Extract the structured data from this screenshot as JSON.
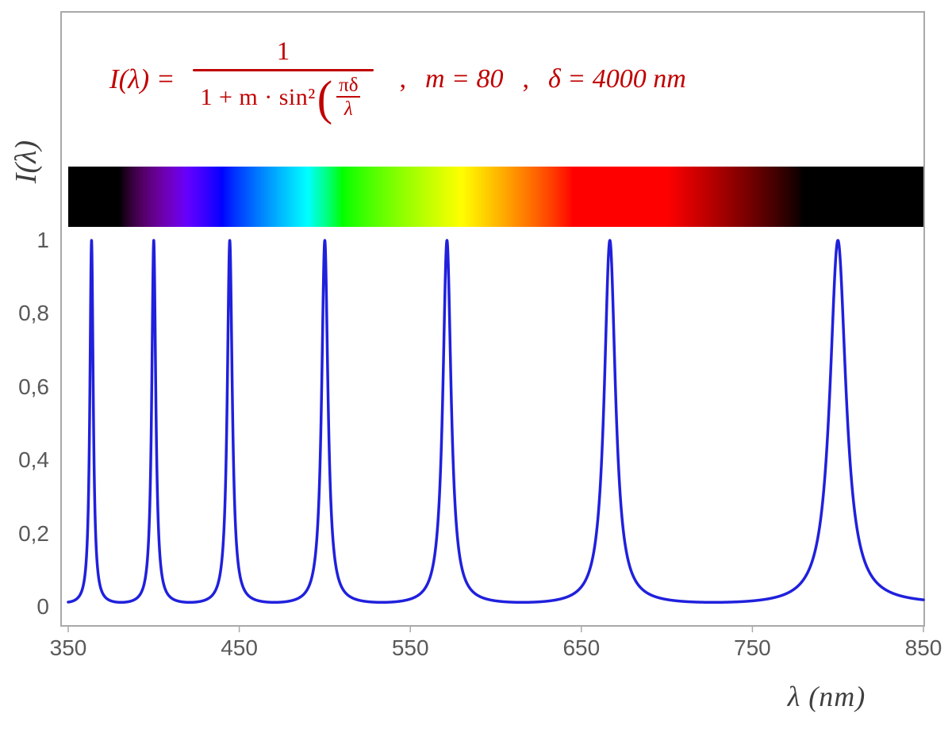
{
  "figure": {
    "background": "#ffffff",
    "frame_color": "#a9a9a9",
    "tick_text_color": "#595959",
    "axis_title_color": "#3f3f3f"
  },
  "formula": {
    "color": "#c00000",
    "lhs": "I(λ) =",
    "numerator": "1",
    "denominator_text": "1 + m · sin²",
    "paren_open": "(",
    "inner_numerator": "πδ",
    "inner_denominator": "λ",
    "comma1": ",",
    "param_m": "m = 80",
    "comma2": ",",
    "param_delta": "δ = 4000 nm"
  },
  "chart_data": {
    "type": "line",
    "title": "I(λ) = 1 / (1 + m·sin²(πδ/λ)) ,  m = 80 ,  δ = 4000 nm",
    "params": {
      "m": 80,
      "delta_nm": 4000
    },
    "x": {
      "min": 350,
      "max": 850,
      "ticks": [
        350,
        450,
        550,
        650,
        750,
        850
      ],
      "tick_labels": [
        "350",
        "450",
        "550",
        "650",
        "750",
        "850"
      ],
      "label": "λ  (nm)"
    },
    "y": {
      "min": 0,
      "max": 1,
      "ticks": [
        0,
        0.2,
        0.4,
        0.6,
        0.8,
        1
      ],
      "tick_labels": [
        "0",
        "0,2",
        "0,4",
        "0,6",
        "0,8",
        "1"
      ],
      "label": "I(λ)"
    },
    "peaks_nm": [
      363.64,
      400,
      444.44,
      500,
      571.43,
      666.67,
      800
    ],
    "peak_value": 1,
    "baseline_value": 0.0123,
    "curve_color": "#2020dd",
    "grid": false,
    "legend": false,
    "spectrum_bar": {
      "visible_min_nm": 380,
      "visible_max_nm": 780,
      "lambda_min_nm": 350,
      "lambda_max_nm": 850
    }
  }
}
